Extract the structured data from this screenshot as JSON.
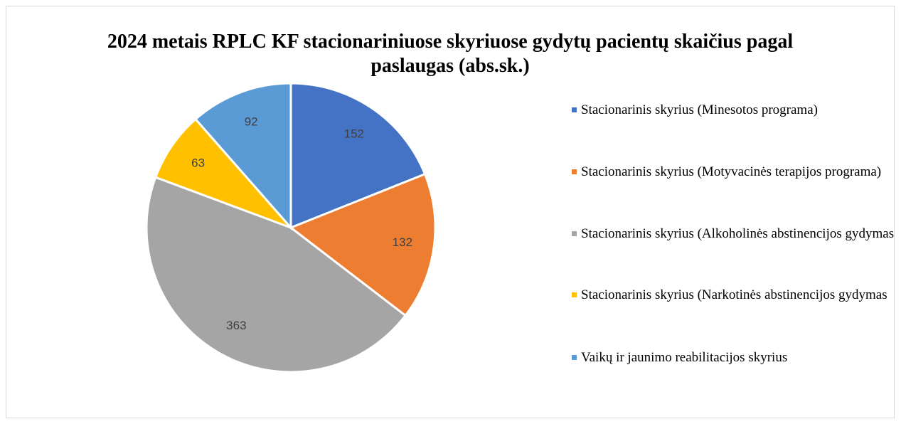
{
  "chart_data": {
    "type": "pie",
    "title": "2024 metais RPLC KF stacionariniuose skyriuose gydytų pacientų skaičius pagal paslaugas (abs.sk.)",
    "categories": [
      "Stacionarinis skyrius (Minesotos programa)",
      "Stacionarinis skyrius (Motyvacinės terapijos programa)",
      "Stacionarinis skyrius (Alkoholinės abstinencijos gydymas",
      "Stacionarinis skyrius (Narkotinės abstinencijos gydymas",
      "Vaikų ir jaunimo reabilitacijos skyrius"
    ],
    "values": [
      152,
      132,
      363,
      63,
      92
    ],
    "colors": [
      "#4472c4",
      "#ed7d31",
      "#a5a5a5",
      "#ffc000",
      "#5b9bd5"
    ],
    "legend": "right"
  }
}
